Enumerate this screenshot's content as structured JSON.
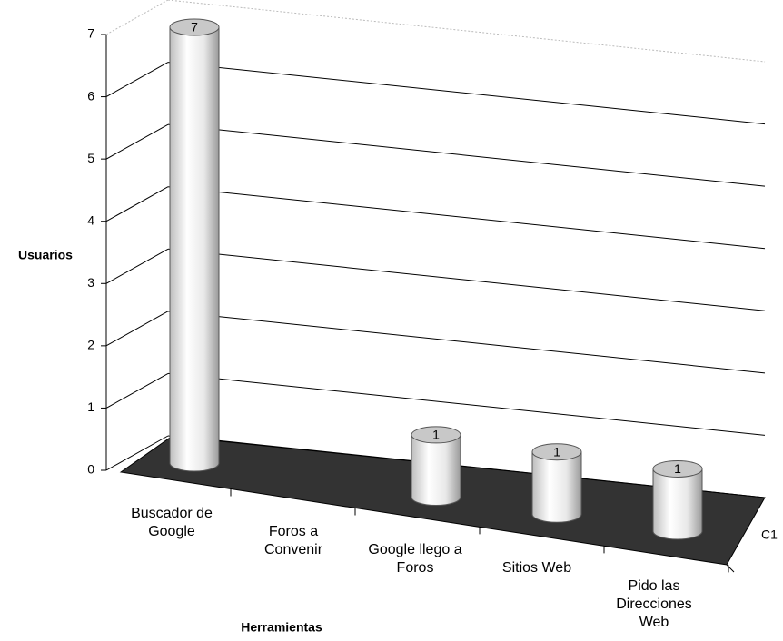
{
  "chart_data": {
    "type": "bar3d",
    "y_axis_label": "Usuarios",
    "x_axis_label": "Herramientas",
    "categories": [
      "Buscador de Google",
      "Foros a Convenir",
      "Google llego a Foros",
      "Sitios Web",
      "Pido las Direcciones Web"
    ],
    "series": [
      {
        "name": "C1",
        "color": "#e6e6e6",
        "values": [
          7,
          0,
          1,
          1,
          1
        ]
      }
    ],
    "ylim": [
      0,
      7
    ],
    "yticks": [
      0,
      1,
      2,
      3,
      4,
      5,
      6,
      7
    ],
    "grid": true,
    "floor_color": "#333333"
  }
}
